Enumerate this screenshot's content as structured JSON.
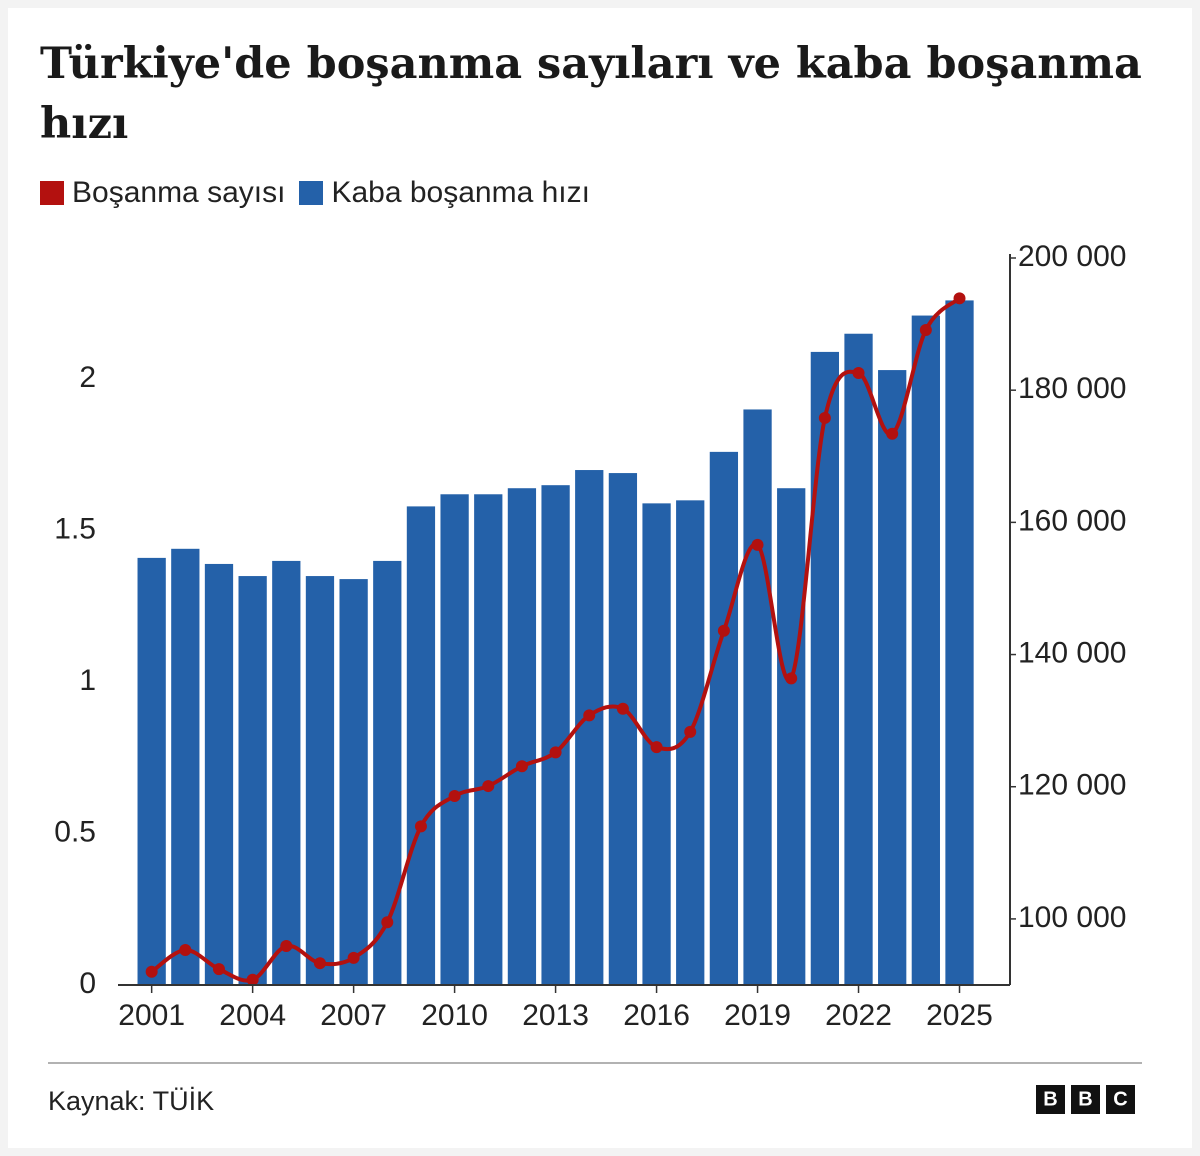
{
  "chart_data": {
    "type": "bar",
    "title": "Türkiye'de boşanma sayıları ve kaba boşanma hızı",
    "source": "Kaynak: TÜİK",
    "logo": [
      "B",
      "B",
      "C"
    ],
    "x": [
      2001,
      2002,
      2003,
      2004,
      2005,
      2006,
      2007,
      2008,
      2009,
      2010,
      2011,
      2012,
      2013,
      2014,
      2015,
      2016,
      2017,
      2018,
      2019,
      2020,
      2021,
      2022,
      2023,
      2024,
      2025
    ],
    "xlim": [
      2000,
      2026.5
    ],
    "xticks": [
      2001,
      2004,
      2007,
      2010,
      2013,
      2016,
      2019,
      2022,
      2025
    ],
    "ylim": [
      0,
      2.4
    ],
    "yticks": [
      0,
      0.5,
      1,
      1.5,
      2
    ],
    "y2lim": [
      90000,
      200000
    ],
    "y2ticks": [
      {
        "value": 100000,
        "label": "100 000"
      },
      {
        "value": 120000,
        "label": "120 000"
      },
      {
        "value": 140000,
        "label": "140 000"
      },
      {
        "value": 160000,
        "label": "160 000"
      },
      {
        "value": 180000,
        "label": "180 000"
      },
      {
        "value": 200000,
        "label": "200 000"
      }
    ],
    "series": [
      {
        "name": "Boşanma sayısı",
        "type": "line",
        "axis": "y2",
        "color": "#b3110f",
        "values": [
          92000,
          95300,
          92400,
          90800,
          95900,
          93300,
          94100,
          99500,
          114000,
          118600,
          120100,
          123100,
          125200,
          130800,
          131800,
          126000,
          128300,
          143600,
          156600,
          136400,
          175800,
          182600,
          173400,
          189100,
          193900
        ]
      },
      {
        "name": "Kaba boşanma hızı",
        "type": "bar",
        "axis": "y",
        "color": "#2461a9",
        "values": [
          1.41,
          1.44,
          1.39,
          1.35,
          1.4,
          1.35,
          1.34,
          1.4,
          1.58,
          1.62,
          1.62,
          1.64,
          1.65,
          1.7,
          1.69,
          1.59,
          1.6,
          1.76,
          1.9,
          1.64,
          2.09,
          2.15,
          2.03,
          2.21,
          2.26
        ]
      }
    ]
  }
}
